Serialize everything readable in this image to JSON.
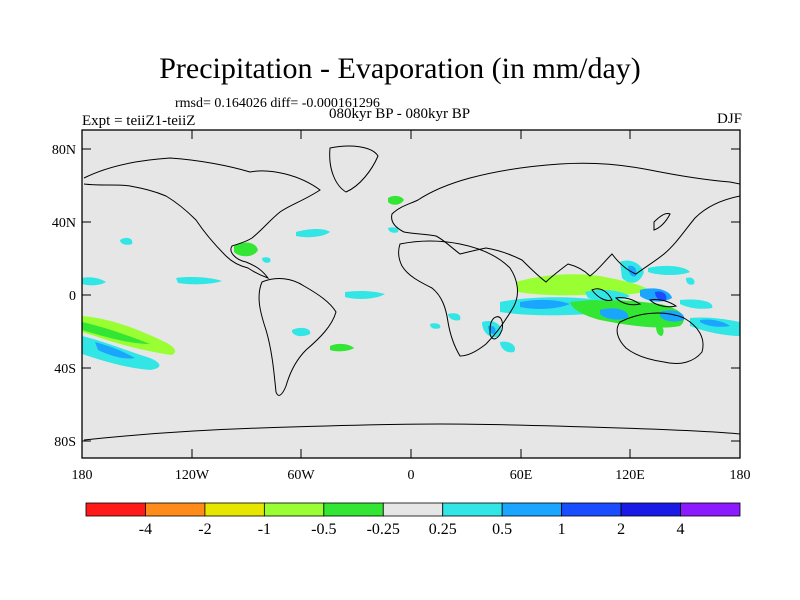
{
  "title": "Precipitation - Evaporation (in mm/day)",
  "stats_line": "rmsd= 0.164026 diff= -0.000161296",
  "period_line": "080kyr BP - 080kyr BP",
  "experiment": "Expt = teiiZ1-teiiZ",
  "season": "DJF",
  "lat_labels": [
    "80N",
    "40N",
    "0",
    "40S",
    "80S"
  ],
  "lon_labels": [
    "180",
    "120W",
    "60W",
    "0",
    "60E",
    "120E",
    "180"
  ],
  "colorbar": {
    "colors": [
      "#ff1a1a",
      "#ff8c1a",
      "#e6e600",
      "#99ff33",
      "#33e633",
      "#e6e6e6",
      "#33e6e6",
      "#1aa6ff",
      "#1a4dff",
      "#1a1ae6",
      "#8c1aff"
    ],
    "labels": [
      "-4",
      "-2",
      "-1",
      "-0.5",
      "-0.25",
      "0.25",
      "0.5",
      "1",
      "2",
      "4"
    ]
  },
  "palette": {
    "ocean": "#e6e6e6",
    "coast": "#000000"
  }
}
